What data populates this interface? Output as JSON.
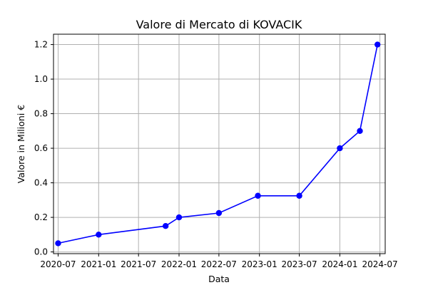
{
  "chart_data": {
    "type": "line",
    "title": "Valore di Mercato di KOVACIK",
    "xlabel": "Data",
    "ylabel": "Valore in Milioni €",
    "x_ticks": [
      "2020-07",
      "2021-01",
      "2021-07",
      "2022-01",
      "2022-07",
      "2023-01",
      "2023-07",
      "2024-01",
      "2024-07"
    ],
    "y_ticks": [
      "0.0",
      "0.2",
      "0.4",
      "0.6",
      "0.8",
      "1.0",
      "1.2"
    ],
    "xlim": [
      "2020-06-10",
      "2024-07-25"
    ],
    "ylim": [
      -0.01,
      1.26
    ],
    "grid": true,
    "series": [
      {
        "color": "#0000ff",
        "marker": "circle",
        "points": [
          {
            "x": "2020-07-01",
            "y": 0.05
          },
          {
            "x": "2021-01-01",
            "y": 0.1
          },
          {
            "x": "2021-11-01",
            "y": 0.15
          },
          {
            "x": "2022-01-01",
            "y": 0.2
          },
          {
            "x": "2022-07-01",
            "y": 0.225
          },
          {
            "x": "2022-12-25",
            "y": 0.325
          },
          {
            "x": "2023-07-01",
            "y": 0.325
          },
          {
            "x": "2024-01-01",
            "y": 0.6
          },
          {
            "x": "2024-04-01",
            "y": 0.7
          },
          {
            "x": "2024-06-20",
            "y": 1.2
          }
        ]
      }
    ]
  }
}
